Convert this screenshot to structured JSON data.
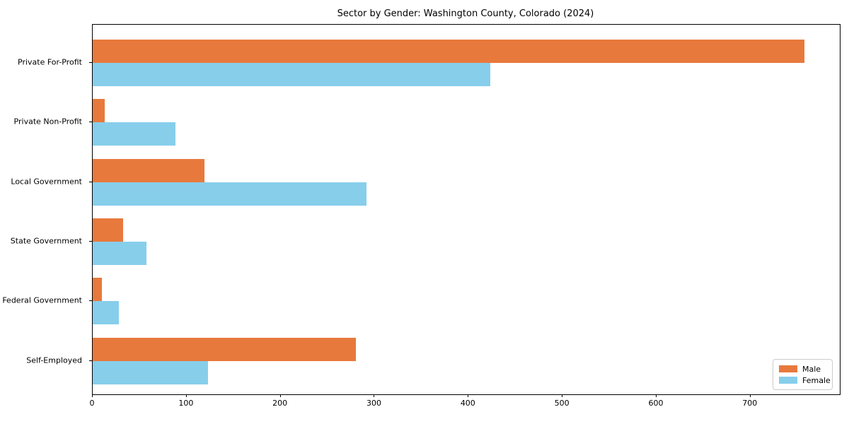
{
  "title": "Sector by Gender: Washington County, Colorado (2024)",
  "colors": {
    "male": "#E8793C",
    "female": "#87CEEB",
    "axis": "#000000",
    "legend_border": "#cccccc",
    "background": "#ffffff"
  },
  "legend": {
    "entries": [
      {
        "label": "Male",
        "color": "#E8793C"
      },
      {
        "label": "Female",
        "color": "#87CEEB"
      }
    ],
    "position": "lower right"
  },
  "chart_data": {
    "type": "bar",
    "orientation": "horizontal",
    "title": "Sector by Gender: Washington County, Colorado (2024)",
    "xlabel": "",
    "ylabel": "",
    "categories": [
      "Private For-Profit",
      "Private Non-Profit",
      "Local Government",
      "State Government",
      "Federal Government",
      "Self-Employed"
    ],
    "series": [
      {
        "name": "Male",
        "color": "#E8793C",
        "values": [
          757,
          13,
          119,
          32,
          10,
          280
        ]
      },
      {
        "name": "Female",
        "color": "#87CEEB",
        "values": [
          423,
          88,
          291,
          57,
          28,
          123
        ]
      }
    ],
    "xlim": [
      0,
      795
    ],
    "xticks": [
      0,
      100,
      200,
      300,
      400,
      500,
      600,
      700
    ],
    "grid": false,
    "legend_position": "lower right"
  }
}
